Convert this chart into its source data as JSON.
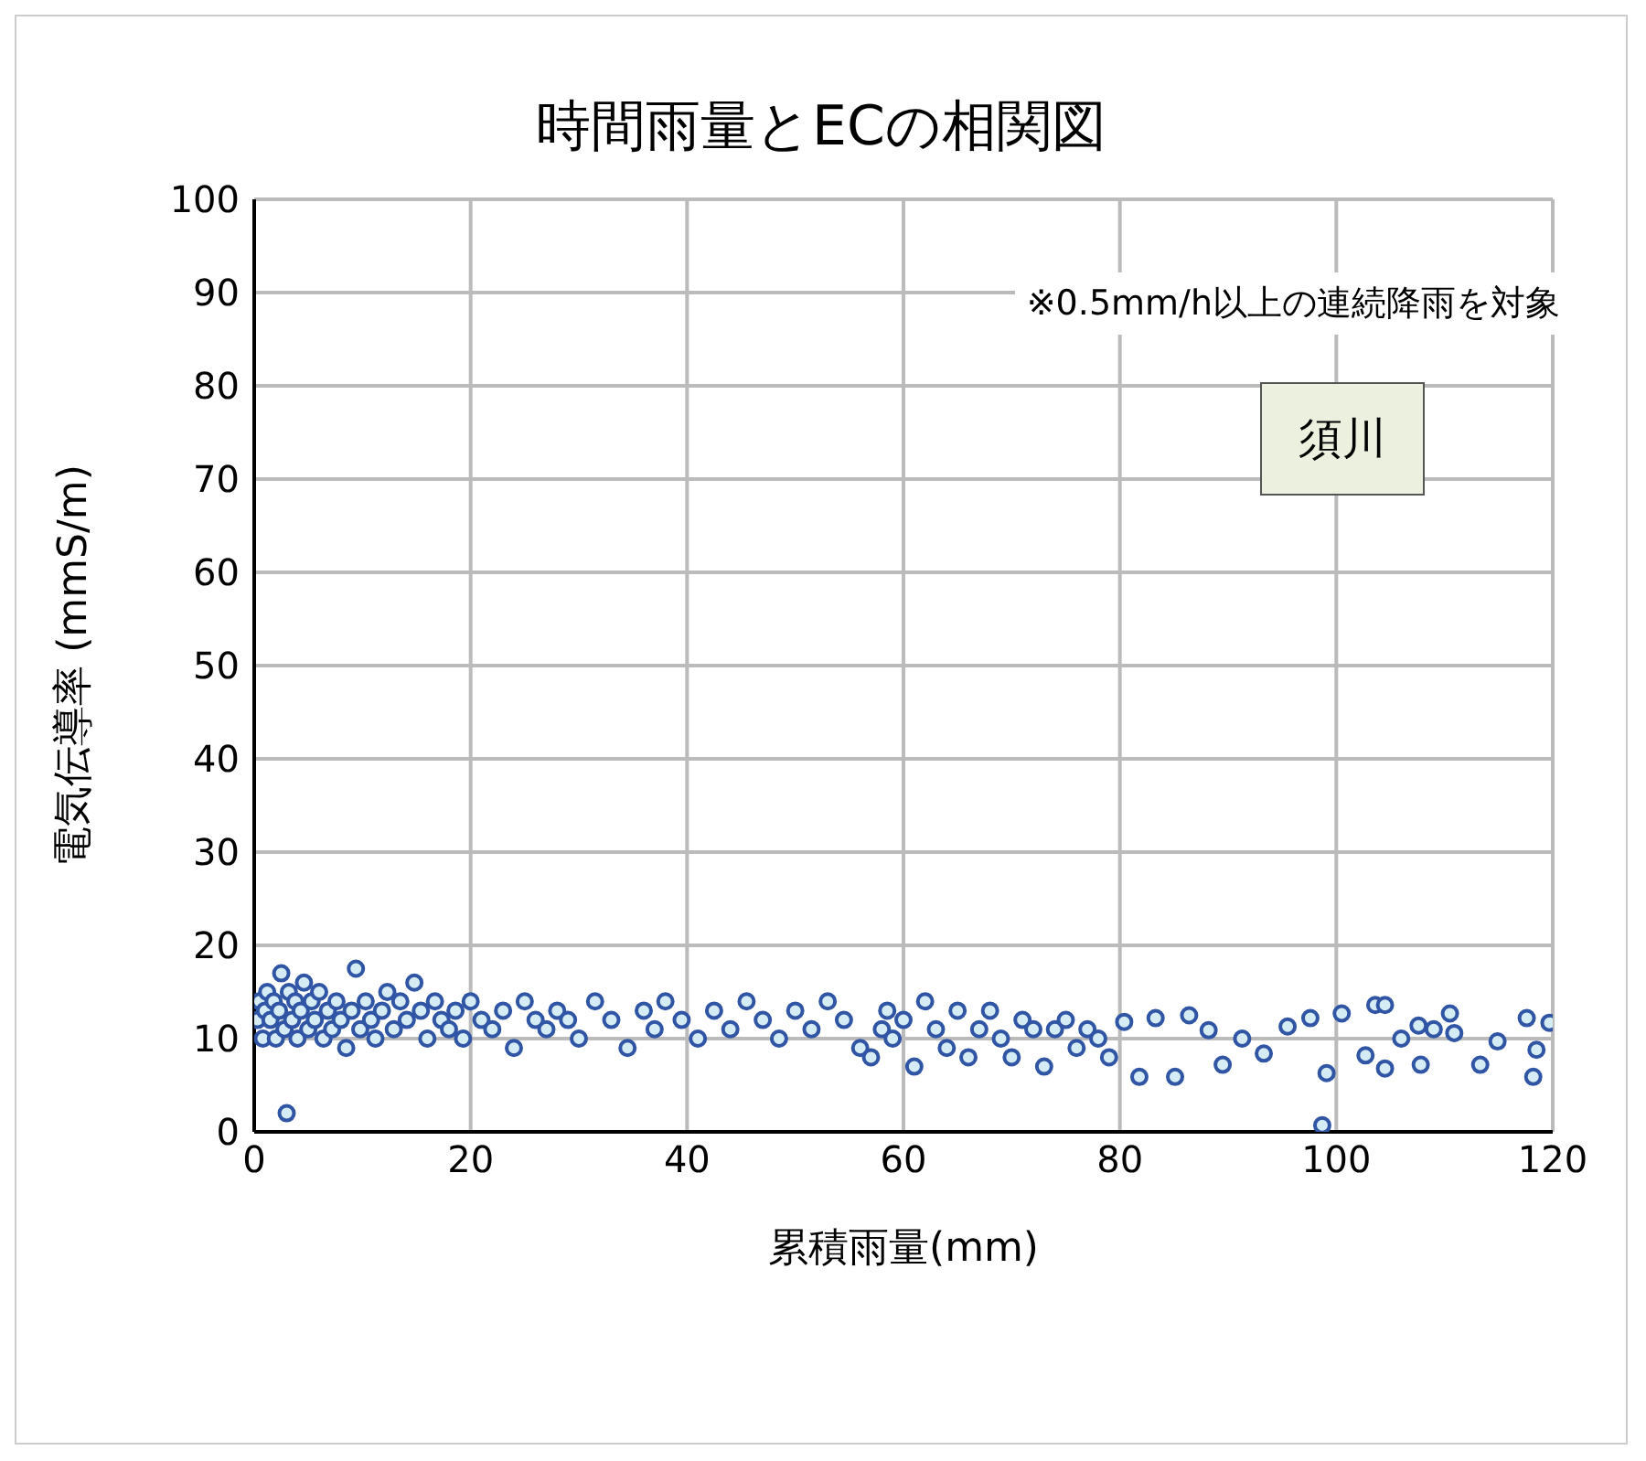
{
  "chart_data": {
    "type": "scatter",
    "title": "時間雨量とECの相関図",
    "xlabel": "累積雨量(mm)",
    "ylabel": "電気伝導率 (mmS/m)",
    "annotations": [
      "※0.5mm/h以上の連続降雨を対象",
      "須川"
    ],
    "x": [
      0.3,
      0.5,
      0.8,
      1,
      1.2,
      1.5,
      1.8,
      2,
      2.3,
      2.5,
      2.8,
      3,
      3.2,
      3.5,
      3.8,
      4,
      4.3,
      4.6,
      5,
      5.3,
      5.6,
      6,
      6.4,
      6.8,
      7.2,
      7.6,
      8,
      8.5,
      9,
      9.4,
      9.8,
      10.3,
      10.8,
      11.2,
      11.8,
      12.3,
      12.9,
      13.5,
      14.1,
      14.8,
      15.4,
      16,
      16.7,
      17.3,
      18,
      18.6,
      19.3,
      20,
      21,
      22,
      23,
      24,
      25,
      26,
      27,
      28,
      29,
      30,
      31.5,
      33,
      34.5,
      36,
      37,
      38,
      39.5,
      41,
      42.5,
      44,
      45.5,
      47,
      48.5,
      50,
      51.5,
      53,
      54.5,
      56,
      57,
      58,
      58.5,
      59,
      60,
      61,
      62,
      63,
      64,
      65,
      66,
      67,
      68,
      69,
      70,
      71,
      72,
      73,
      74,
      75,
      76,
      77,
      78,
      79,
      80.4,
      81.8,
      83.3,
      85.1,
      86.4,
      88.2,
      89.5,
      91.3,
      93.3,
      95.5,
      97.6,
      98.7,
      99.1,
      100.5,
      102.7,
      103.6,
      104.5,
      104.5,
      106,
      107.6,
      107.8,
      109,
      110.5,
      110.9,
      113.3,
      114.9,
      117.6,
      118.2,
      118.5,
      119.7
    ],
    "values": [
      12,
      14,
      10,
      13,
      15,
      12,
      14,
      10,
      13,
      17,
      11,
      2,
      15,
      12,
      14,
      10,
      13,
      16,
      11,
      14,
      12,
      15,
      10,
      13,
      11,
      14,
      12,
      9,
      13,
      17.5,
      11,
      14,
      12,
      10,
      13,
      15,
      11,
      14,
      12,
      16,
      13,
      10,
      14,
      12,
      11,
      13,
      10,
      14,
      12,
      11,
      13,
      9,
      14,
      12,
      11,
      13,
      12,
      10,
      14,
      12,
      9,
      13,
      11,
      14,
      12,
      10,
      13,
      11,
      14,
      12,
      10,
      13,
      11,
      14,
      12,
      9,
      8,
      11,
      13,
      10,
      12,
      7,
      14,
      11,
      9,
      13,
      8,
      11,
      13,
      10,
      8,
      12,
      11,
      7,
      11,
      12,
      9,
      11,
      10,
      8,
      11.8,
      5.9,
      12.2,
      5.9,
      12.5,
      10.9,
      7.2,
      10,
      8.4,
      11.3,
      12.2,
      0.7,
      6.3,
      12.7,
      8.2,
      13.6,
      13.6,
      6.8,
      10,
      11.4,
      7.2,
      11,
      12.7,
      10.6,
      7.2,
      9.7,
      12.2,
      5.9,
      8.8,
      11.7
    ],
    "color": "#2f55a4",
    "marker": "circle",
    "xlim": [
      0,
      120
    ],
    "xticks": [
      0,
      20,
      40,
      60,
      80,
      100,
      120
    ],
    "ylim": [
      0,
      100
    ],
    "yticks": [
      0,
      10,
      20,
      30,
      40,
      50,
      60,
      70,
      80,
      90,
      100
    ],
    "grid": true
  }
}
